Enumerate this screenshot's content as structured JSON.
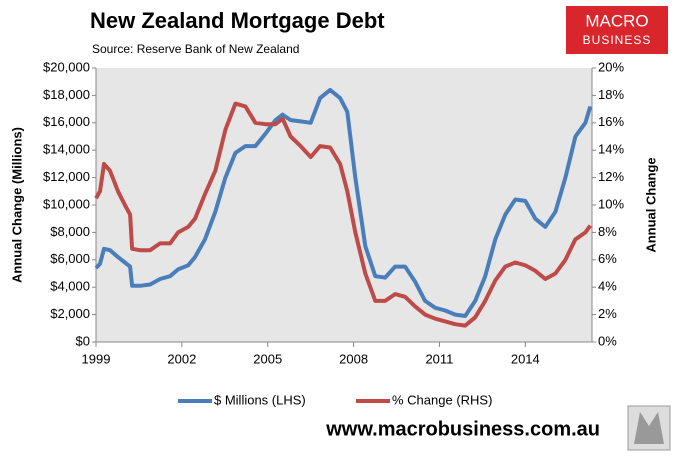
{
  "chart_data": {
    "type": "line",
    "title": "New Zealand Mortgage Debt",
    "subtitle": "Source: Reserve Bank of New Zealand",
    "y_label": "Annual Change (Millions)",
    "y2_label": "Annual Change",
    "xlim": [
      1999,
      2016.33
    ],
    "xticks": [
      1999,
      2002,
      2005,
      2008,
      2011,
      2014
    ],
    "ylim": [
      0,
      20000
    ],
    "yticks": [
      {
        "value": 0,
        "label": "$0"
      },
      {
        "value": 2000,
        "label": "$2,000"
      },
      {
        "value": 4000,
        "label": "$4,000"
      },
      {
        "value": 6000,
        "label": "$6,000"
      },
      {
        "value": 8000,
        "label": "$8,000"
      },
      {
        "value": 10000,
        "label": "$10,000"
      },
      {
        "value": 12000,
        "label": "$12,000"
      },
      {
        "value": 14000,
        "label": "$14,000"
      },
      {
        "value": 16000,
        "label": "$16,000"
      },
      {
        "value": 18000,
        "label": "$18,000"
      },
      {
        "value": 20000,
        "label": "$20,000"
      }
    ],
    "y2lim": [
      0,
      20
    ],
    "y2ticks": [
      {
        "value": 0,
        "label": "0%"
      },
      {
        "value": 2,
        "label": "2%"
      },
      {
        "value": 4,
        "label": "4%"
      },
      {
        "value": 6,
        "label": "6%"
      },
      {
        "value": 8,
        "label": "8%"
      },
      {
        "value": 10,
        "label": "10%"
      },
      {
        "value": 12,
        "label": "12%"
      },
      {
        "value": 14,
        "label": "14%"
      },
      {
        "value": 16,
        "label": "16%"
      },
      {
        "value": 18,
        "label": "18%"
      },
      {
        "value": 20,
        "label": "20%"
      }
    ],
    "legend": "bottom",
    "x": [
      1999.0,
      1999.14,
      1999.28,
      1999.49,
      1999.77,
      2000.01,
      2000.19,
      2000.26,
      2000.54,
      2000.89,
      2001.24,
      2001.59,
      2001.87,
      2002.22,
      2002.46,
      2002.81,
      2003.17,
      2003.52,
      2003.87,
      2004.22,
      2004.57,
      2004.92,
      2005.27,
      2005.52,
      2005.8,
      2006.15,
      2006.5,
      2006.83,
      2007.18,
      2007.53,
      2007.78,
      2008.06,
      2008.41,
      2008.76,
      2009.1,
      2009.45,
      2009.8,
      2010.15,
      2010.5,
      2010.85,
      2011.2,
      2011.55,
      2011.9,
      2012.25,
      2012.6,
      2012.95,
      2013.3,
      2013.65,
      2014.0,
      2014.35,
      2014.7,
      2015.05,
      2015.4,
      2015.75,
      2016.1,
      2016.27
    ],
    "series": [
      {
        "name": "$ Millions (LHS)",
        "color": "#4a7ebb",
        "axis": "y",
        "values": [
          5400,
          5700,
          6800,
          6700,
          6200,
          5800,
          5500,
          4100,
          4100,
          4200,
          4600,
          4800,
          5300,
          5600,
          6200,
          7500,
          9500,
          12000,
          13800,
          14300,
          14300,
          15200,
          16200,
          16600,
          16200,
          16100,
          16000,
          17800,
          18400,
          17800,
          16800,
          12000,
          7000,
          4800,
          4700,
          5500,
          5500,
          4400,
          3000,
          2500,
          2300,
          2000,
          1900,
          3000,
          4800,
          7500,
          9300,
          10400,
          10300,
          9000,
          8400,
          9500,
          12000,
          15000,
          16000,
          17200
        ]
      },
      {
        "name": "% Change (RHS)",
        "color": "#be4b48",
        "axis": "y2",
        "values": [
          10.5,
          11,
          13,
          12.5,
          11,
          10,
          9.3,
          6.8,
          6.7,
          6.7,
          7.2,
          7.2,
          8.0,
          8.4,
          9.0,
          10.8,
          12.5,
          15.5,
          17.4,
          17.2,
          16.0,
          15.9,
          15.9,
          16.3,
          15.0,
          14.3,
          13.5,
          14.3,
          14.2,
          13.0,
          11.0,
          8.0,
          5.0,
          3.0,
          3.0,
          3.5,
          3.3,
          2.6,
          2.0,
          1.7,
          1.5,
          1.3,
          1.2,
          1.8,
          3.0,
          4.5,
          5.5,
          5.8,
          5.6,
          5.2,
          4.6,
          5.0,
          6.0,
          7.5,
          8.0,
          8.5
        ]
      }
    ]
  },
  "logo": {
    "line1": "MACRO",
    "line2": "BUSINESS"
  },
  "footer": "www.macrobusiness.com.au"
}
